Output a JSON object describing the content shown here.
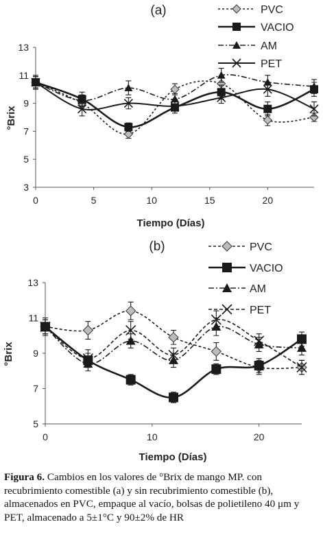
{
  "chart_data": [
    {
      "type": "line",
      "title": "(a)",
      "xlabel": "Tiempo (Días)",
      "ylabel": "°Brix",
      "xlim": [
        0,
        24
      ],
      "ylim": [
        3,
        13
      ],
      "xticks": [
        0,
        5,
        10,
        15,
        20
      ],
      "yticks": [
        3,
        5,
        7,
        9,
        11,
        13
      ],
      "grid": false,
      "legend_position": "top-right",
      "x": [
        0,
        4,
        8,
        12,
        16,
        20,
        24
      ],
      "series": [
        {
          "name": "PVC",
          "values": [
            10.5,
            9.0,
            6.8,
            10.0,
            10.4,
            7.8,
            8.0
          ],
          "errors": [
            0.4,
            0.4,
            0.3,
            0.4,
            0.5,
            0.4,
            0.3
          ],
          "marker": "diamond",
          "dash": "3,3",
          "width": 1.6,
          "markerFill": "#bdbdbd",
          "markerSize": 6
        },
        {
          "name": "VACIO",
          "values": [
            10.5,
            9.3,
            7.3,
            8.7,
            9.8,
            8.6,
            10.0
          ],
          "errors": [
            0.4,
            0.5,
            0.3,
            0.4,
            0.5,
            0.5,
            0.5
          ],
          "marker": "square",
          "dash": "",
          "width": 2.6,
          "markerFill": "#1a1a1a",
          "markerSize": 6
        },
        {
          "name": "AM",
          "values": [
            10.5,
            9.2,
            10.1,
            9.3,
            11.0,
            10.5,
            10.2
          ],
          "errors": [
            0.4,
            0.4,
            0.5,
            0.4,
            0.5,
            0.5,
            0.5
          ],
          "marker": "triangle",
          "dash": "8,3,2,3",
          "width": 1.6,
          "markerFill": "#1a1a1a",
          "markerSize": 6
        },
        {
          "name": "PET",
          "values": [
            10.5,
            8.6,
            9.0,
            8.8,
            9.4,
            10.0,
            8.6
          ],
          "errors": [
            0.5,
            0.5,
            0.4,
            0.5,
            0.4,
            0.5,
            0.5
          ],
          "marker": "x",
          "dash": "",
          "width": 2.0,
          "markerFill": "none",
          "markerSize": 6
        }
      ]
    },
    {
      "type": "line",
      "title": "(b)",
      "xlabel": "Tiempo (Días)",
      "ylabel": "°Brix",
      "xlim": [
        0,
        24
      ],
      "ylim": [
        5,
        13
      ],
      "xticks": [
        0,
        10,
        20
      ],
      "yticks": [
        5,
        7,
        9,
        11,
        13
      ],
      "grid": false,
      "legend_position": "top-right",
      "x": [
        0,
        4,
        8,
        12,
        16,
        20,
        24
      ],
      "series": [
        {
          "name": "PVC",
          "values": [
            10.5,
            10.3,
            11.4,
            9.9,
            9.1,
            8.2,
            8.2
          ],
          "errors": [
            0.4,
            0.5,
            0.5,
            0.4,
            0.5,
            0.4,
            0.4
          ],
          "marker": "diamond",
          "dash": "4,3",
          "width": 1.6,
          "markerFill": "#bdbdbd",
          "markerSize": 7
        },
        {
          "name": "VACIO",
          "values": [
            10.5,
            8.6,
            7.5,
            6.5,
            8.1,
            8.3,
            9.8
          ],
          "errors": [
            0.4,
            0.4,
            0.3,
            0.3,
            0.3,
            0.4,
            0.4
          ],
          "marker": "square",
          "dash": "",
          "width": 2.6,
          "markerFill": "#1a1a1a",
          "markerSize": 7
        },
        {
          "name": "AM",
          "values": [
            10.5,
            8.4,
            9.7,
            8.6,
            10.5,
            9.5,
            9.3
          ],
          "errors": [
            0.4,
            0.4,
            0.4,
            0.4,
            0.5,
            0.4,
            0.4
          ],
          "marker": "triangle",
          "dash": "8,3,2,3",
          "width": 1.6,
          "markerFill": "#1a1a1a",
          "markerSize": 7
        },
        {
          "name": "PET",
          "values": [
            10.5,
            8.7,
            10.3,
            8.9,
            10.9,
            9.7,
            8.2
          ],
          "errors": [
            0.5,
            0.5,
            0.5,
            0.4,
            0.5,
            0.4,
            0.4
          ],
          "marker": "x",
          "dash": "5,3",
          "width": 1.6,
          "markerFill": "none",
          "markerSize": 7
        }
      ]
    }
  ],
  "caption": {
    "label": "Figura 6.",
    "text": "Cambios en los valores de °Brix de mango MP. con recubrimiento comestible (a) y sin recubrimiento comestible (b), almacenados en PVC, empaque al vacío, bolsas de polietileno 40 μm y PET, almacenado a 5±1°C y 90±2% de HR"
  }
}
